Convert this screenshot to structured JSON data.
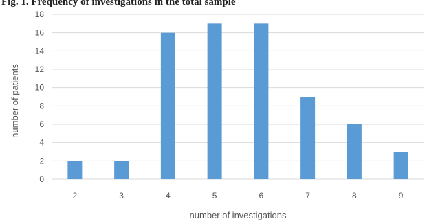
{
  "caption": "Fig. 1. Frequency of investigations in the total sample",
  "chart_data": {
    "type": "bar",
    "categories": [
      "2",
      "3",
      "4",
      "5",
      "6",
      "7",
      "8",
      "9"
    ],
    "values": [
      2,
      2,
      16,
      17,
      17,
      9,
      6,
      3
    ],
    "xlabel": "number of investigations",
    "ylabel": "number of patients",
    "ylim": [
      0,
      18
    ],
    "yticks": [
      "0",
      "2",
      "4",
      "6",
      "8",
      "10",
      "12",
      "14",
      "16",
      "18"
    ],
    "grid": true,
    "legend": "none",
    "bar_color": "#5b9bd5",
    "grid_color": "#d9d9d9"
  }
}
